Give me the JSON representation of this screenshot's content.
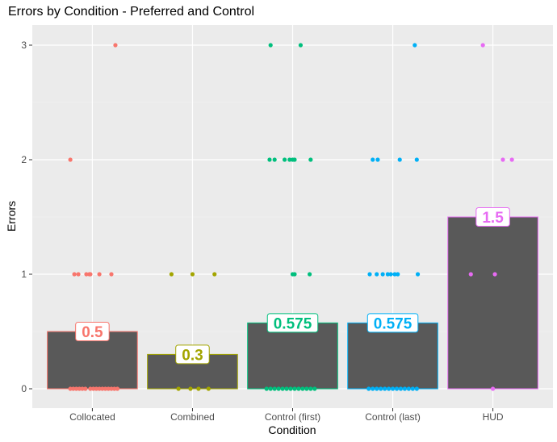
{
  "chart_data": {
    "type": "bar",
    "title": "Errors by Condition - Preferred and Control",
    "xlabel": "Condition",
    "ylabel": "Errors",
    "ylim": [
      -0.17,
      3.12
    ],
    "yticks": [
      0,
      1,
      2,
      3
    ],
    "grid": true,
    "categories": [
      "Collocated",
      "Combined",
      "Control (first)",
      "Control (last)",
      "HUD"
    ],
    "values": [
      0.5,
      0.3,
      0.575,
      0.575,
      1.5
    ],
    "value_labels": [
      "0.5",
      "0.3",
      "0.575",
      "0.575",
      "1.5"
    ],
    "colors": [
      "#F8766D",
      "#A3A500",
      "#00BF7D",
      "#00B0F6",
      "#E76BF3"
    ],
    "points": [
      {
        "category": "Collocated",
        "offsets": [
          -0.22,
          -0.19,
          -0.16,
          -0.13,
          -0.1,
          -0.07,
          -0.02,
          0.01,
          0.04,
          0.07,
          0.1,
          0.13,
          0.16,
          0.19,
          0.22,
          0.25
        ],
        "y": 0
      },
      {
        "category": "Collocated",
        "offsets": [
          -0.18,
          -0.14,
          -0.06,
          -0.03,
          -0.02,
          0.07,
          0.19
        ],
        "y": 1
      },
      {
        "category": "Collocated",
        "offsets": [
          -0.22
        ],
        "y": 2
      },
      {
        "category": "Collocated",
        "offsets": [
          0.23
        ],
        "y": 3
      },
      {
        "category": "Combined",
        "offsets": [
          -0.14,
          -0.02,
          0.06,
          0.16
        ],
        "y": 0
      },
      {
        "category": "Combined",
        "offsets": [
          -0.21,
          0.0,
          0.22
        ],
        "y": 1
      },
      {
        "category": "Control (first)",
        "offsets": [
          -0.26,
          -0.22,
          -0.18,
          -0.14,
          -0.1,
          -0.06,
          -0.02,
          0.02,
          0.06,
          0.1,
          0.14,
          0.18,
          0.22
        ],
        "y": 0
      },
      {
        "category": "Control (first)",
        "offsets": [
          0.0,
          0.02,
          0.17
        ],
        "y": 1
      },
      {
        "category": "Control (first)",
        "offsets": [
          -0.23,
          -0.18,
          -0.08,
          -0.03,
          0.0,
          0.02,
          0.18
        ],
        "y": 2
      },
      {
        "category": "Control (first)",
        "offsets": [
          -0.22,
          0.08
        ],
        "y": 3
      },
      {
        "category": "Control (last)",
        "offsets": [
          -0.24,
          -0.2,
          -0.16,
          -0.12,
          -0.08,
          -0.04,
          0.0,
          0.04,
          0.08,
          0.12,
          0.16,
          0.2,
          0.24
        ],
        "y": 0
      },
      {
        "category": "Control (last)",
        "offsets": [
          -0.23,
          -0.16,
          -0.1,
          -0.05,
          -0.02,
          0.02,
          0.05,
          0.25
        ],
        "y": 1
      },
      {
        "category": "Control (last)",
        "offsets": [
          -0.2,
          -0.15,
          0.07,
          0.24
        ],
        "y": 2
      },
      {
        "category": "Control (last)",
        "offsets": [
          0.22
        ],
        "y": 3
      },
      {
        "category": "HUD",
        "offsets": [
          -0.22,
          0.02
        ],
        "y": 1
      },
      {
        "category": "HUD",
        "offsets": [
          0.1,
          0.19
        ],
        "y": 2
      },
      {
        "category": "HUD",
        "offsets": [
          -0.1
        ],
        "y": 3
      },
      {
        "category": "HUD",
        "offsets": [
          0.0
        ],
        "y": 0
      }
    ]
  }
}
